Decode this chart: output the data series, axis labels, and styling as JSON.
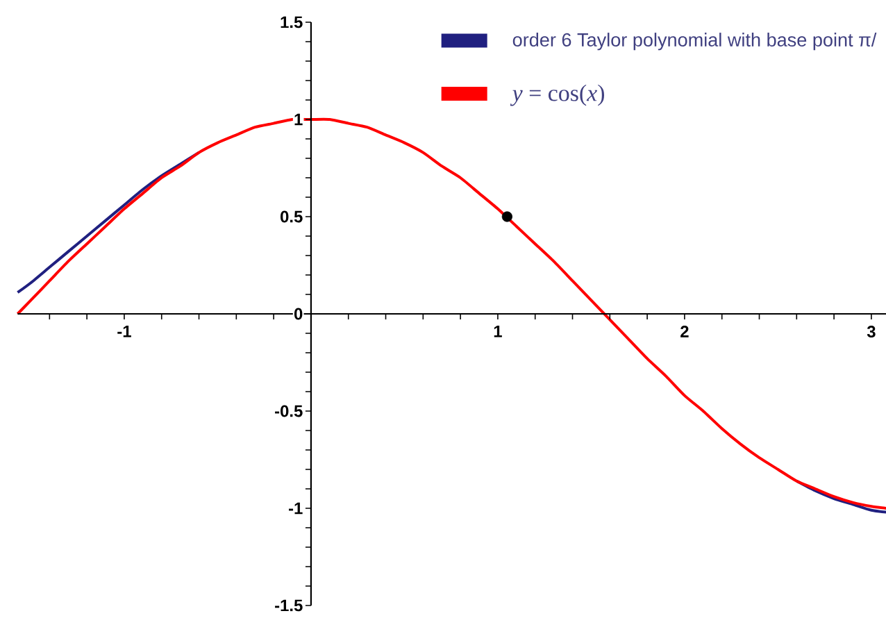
{
  "chart_data": {
    "type": "line",
    "xlim": [
      -1.5708,
      3.08
    ],
    "ylim": [
      -1.5,
      1.5
    ],
    "xticks": [
      {
        "value": -1.4,
        "label": null
      },
      {
        "value": -1.2,
        "label": null
      },
      -1,
      {
        "value": -0.8,
        "label": null
      },
      {
        "value": -0.6,
        "label": null
      },
      {
        "value": -0.4,
        "label": null
      },
      {
        "value": -0.2,
        "label": null
      },
      {
        "value": 0,
        "label": null
      },
      {
        "value": 0.2,
        "label": null
      },
      {
        "value": 0.4,
        "label": null
      },
      {
        "value": 0.6,
        "label": null
      },
      {
        "value": 0.8,
        "label": null
      },
      1,
      {
        "value": 1.2,
        "label": null
      },
      {
        "value": 1.4,
        "label": null
      },
      {
        "value": 1.6,
        "label": null
      },
      {
        "value": 1.8,
        "label": null
      },
      2,
      {
        "value": 2.2,
        "label": null
      },
      {
        "value": 2.4,
        "label": null
      },
      {
        "value": 2.6,
        "label": null
      },
      {
        "value": 2.8,
        "label": null
      },
      3
    ],
    "yticks": [
      -1.5,
      {
        "value": -1.4,
        "label": null
      },
      {
        "value": -1.3,
        "label": null
      },
      {
        "value": -1.2,
        "label": null
      },
      {
        "value": -1.1,
        "label": null
      },
      -1,
      {
        "value": -0.9,
        "label": null
      },
      {
        "value": -0.8,
        "label": null
      },
      {
        "value": -0.7,
        "label": null
      },
      {
        "value": -0.6,
        "label": null
      },
      -0.5,
      {
        "value": -0.4,
        "label": null
      },
      {
        "value": -0.3,
        "label": null
      },
      {
        "value": -0.2,
        "label": null
      },
      {
        "value": -0.1,
        "label": null
      },
      0,
      {
        "value": 0.1,
        "label": null
      },
      {
        "value": 0.2,
        "label": null
      },
      {
        "value": 0.3,
        "label": null
      },
      {
        "value": 0.4,
        "label": null
      },
      0.5,
      {
        "value": 0.6,
        "label": null
      },
      {
        "value": 0.7,
        "label": null
      },
      {
        "value": 0.8,
        "label": null
      },
      {
        "value": 0.9,
        "label": null
      },
      1,
      {
        "value": 1.1,
        "label": null
      },
      {
        "value": 1.2,
        "label": null
      },
      {
        "value": 1.3,
        "label": null
      },
      {
        "value": 1.4,
        "label": null
      },
      1.5
    ],
    "legend": "top right",
    "x": [
      -1.5708,
      -1.5,
      -1.4,
      -1.3,
      -1.2,
      -1.1,
      -1.0,
      -0.9,
      -0.8,
      -0.7,
      -0.6,
      -0.5,
      -0.4,
      -0.3,
      -0.2,
      -0.1,
      0,
      0.1,
      0.2,
      0.3,
      0.4,
      0.5,
      0.6,
      0.7,
      0.8,
      0.9,
      1.0,
      1.1,
      1.2,
      1.3,
      1.4,
      1.5,
      1.6,
      1.7,
      1.8,
      1.9,
      2.0,
      2.1,
      2.2,
      2.3,
      2.4,
      2.5,
      2.6,
      2.7,
      2.8,
      2.9,
      3.0,
      3.08
    ],
    "series": [
      {
        "name": "order 6 Taylor polynomial with base point π/",
        "color": "#202080",
        "values": [
          0.11,
          0.16,
          0.24,
          0.32,
          0.4,
          0.48,
          0.56,
          0.64,
          0.71,
          0.77,
          0.83,
          null,
          null,
          null,
          null,
          null,
          null,
          null,
          null,
          null,
          null,
          null,
          null,
          null,
          null,
          null,
          null,
          null,
          null,
          null,
          null,
          null,
          null,
          null,
          null,
          null,
          null,
          null,
          null,
          null,
          null,
          null,
          -0.86,
          -0.91,
          -0.95,
          -0.98,
          -1.01,
          -1.02
        ]
      },
      {
        "name": "*y* = cos(*x*)",
        "color": "#ff0000",
        "values": [
          0.0,
          0.07,
          0.17,
          0.27,
          0.36,
          0.45,
          0.54,
          0.62,
          0.7,
          0.76,
          0.83,
          0.88,
          0.92,
          0.96,
          0.98,
          1.0,
          1.0,
          1.0,
          0.98,
          0.96,
          0.92,
          0.88,
          0.83,
          0.76,
          0.7,
          0.62,
          0.54,
          0.45,
          0.36,
          0.27,
          0.17,
          0.07,
          -0.03,
          -0.13,
          -0.23,
          -0.32,
          -0.42,
          -0.5,
          -0.59,
          -0.67,
          -0.74,
          -0.8,
          -0.86,
          -0.9,
          -0.94,
          -0.97,
          -0.99,
          -1.0
        ]
      },
      {
        "type": "scatter",
        "marker": "circle",
        "color": "#000000",
        "x": [
          1.05
        ],
        "values": [
          0.5
        ]
      }
    ]
  }
}
